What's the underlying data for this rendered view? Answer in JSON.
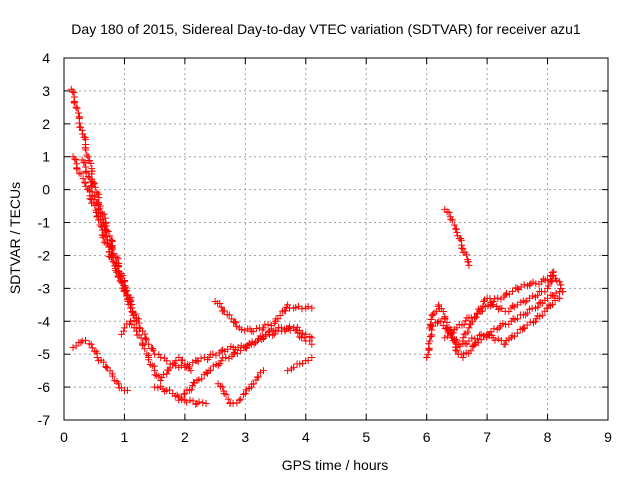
{
  "chart_data": {
    "type": "scatter",
    "title": "Day 180 of 2015, Sidereal Day-to-day VTEC variation (SDTVAR) for receiver azu1",
    "xlabel": "GPS time / hours",
    "ylabel": "SDTVAR / TECUs",
    "xlim": [
      0,
      9
    ],
    "ylim": [
      -7,
      4
    ],
    "x_ticks": [
      "0",
      "1",
      "2",
      "3",
      "4",
      "5",
      "6",
      "7",
      "8",
      "9"
    ],
    "y_ticks": [
      "4",
      "3",
      "2",
      "1",
      "0",
      "-1",
      "-2",
      "-3",
      "-4",
      "-5",
      "-6",
      "-7"
    ],
    "grid": true,
    "marker": "+",
    "color": "#ff0000",
    "series": [
      {
        "name": "trace-1",
        "points": [
          [
            0.12,
            3.05
          ],
          [
            0.2,
            2.5
          ],
          [
            0.3,
            1.8
          ],
          [
            0.4,
            1.0
          ],
          [
            0.5,
            0.2
          ],
          [
            0.6,
            -0.5
          ],
          [
            0.7,
            -1.1
          ],
          [
            0.8,
            -1.7
          ],
          [
            0.9,
            -2.3
          ],
          [
            1.0,
            -2.8
          ],
          [
            1.1,
            -3.4
          ],
          [
            1.2,
            -3.9
          ],
          [
            1.3,
            -4.3
          ],
          [
            1.4,
            -4.7
          ],
          [
            1.5,
            -5.0
          ],
          [
            1.6,
            -5.1
          ],
          [
            1.7,
            -5.2
          ],
          [
            1.8,
            -5.3
          ],
          [
            1.9,
            -5.4
          ],
          [
            2.0,
            -5.4
          ],
          [
            2.2,
            -5.2
          ],
          [
            2.4,
            -5.1
          ],
          [
            2.6,
            -4.9
          ],
          [
            2.8,
            -4.8
          ],
          [
            3.0,
            -4.8
          ],
          [
            3.2,
            -4.6
          ],
          [
            3.4,
            -4.4
          ],
          [
            3.6,
            -4.3
          ],
          [
            3.8,
            -4.2
          ],
          [
            4.0,
            -4.4
          ],
          [
            4.1,
            -4.5
          ]
        ]
      },
      {
        "name": "trace-2",
        "points": [
          [
            0.15,
            1.0
          ],
          [
            0.25,
            0.5
          ],
          [
            0.35,
            0.2
          ],
          [
            0.45,
            -0.3
          ],
          [
            0.55,
            -0.8
          ],
          [
            0.65,
            -1.4
          ],
          [
            0.75,
            -1.9
          ],
          [
            0.85,
            -2.4
          ],
          [
            0.95,
            -2.8
          ],
          [
            1.05,
            -3.2
          ],
          [
            1.1,
            -3.6
          ],
          [
            1.2,
            -4.0
          ]
        ]
      },
      {
        "name": "trace-3",
        "points": [
          [
            0.3,
            0.9
          ],
          [
            0.4,
            0.4
          ],
          [
            0.5,
            -0.2
          ],
          [
            0.6,
            -0.8
          ],
          [
            0.7,
            -1.4
          ],
          [
            0.8,
            -2.0
          ],
          [
            0.9,
            -2.5
          ],
          [
            1.0,
            -3.0
          ],
          [
            1.1,
            -3.5
          ]
        ]
      },
      {
        "name": "trace-4",
        "points": [
          [
            0.15,
            -4.8
          ],
          [
            0.3,
            -4.6
          ],
          [
            0.45,
            -4.7
          ],
          [
            0.55,
            -5.1
          ],
          [
            0.7,
            -5.4
          ],
          [
            0.8,
            -5.6
          ],
          [
            0.9,
            -5.9
          ],
          [
            1.0,
            -6.1
          ],
          [
            1.05,
            -6.1
          ]
        ]
      },
      {
        "name": "trace-5",
        "points": [
          [
            0.95,
            -4.4
          ],
          [
            1.0,
            -4.2
          ],
          [
            1.1,
            -4.0
          ],
          [
            1.2,
            -4.3
          ],
          [
            1.3,
            -4.7
          ],
          [
            1.4,
            -5.1
          ],
          [
            1.5,
            -5.5
          ],
          [
            1.6,
            -5.8
          ],
          [
            1.7,
            -5.6
          ],
          [
            1.8,
            -5.3
          ],
          [
            1.9,
            -5.1
          ],
          [
            2.0,
            -5.3
          ],
          [
            2.1,
            -5.5
          ]
        ]
      },
      {
        "name": "trace-6",
        "points": [
          [
            1.5,
            -6.0
          ],
          [
            1.7,
            -6.1
          ],
          [
            1.9,
            -6.3
          ],
          [
            2.0,
            -6.4
          ],
          [
            2.2,
            -6.5
          ],
          [
            2.35,
            -6.5
          ]
        ]
      },
      {
        "name": "trace-7",
        "points": [
          [
            1.9,
            -6.4
          ],
          [
            2.0,
            -6.2
          ],
          [
            2.2,
            -5.8
          ],
          [
            2.4,
            -5.5
          ],
          [
            2.6,
            -5.2
          ],
          [
            2.8,
            -5.0
          ],
          [
            3.0,
            -4.8
          ],
          [
            3.2,
            -4.6
          ],
          [
            3.4,
            -4.3
          ],
          [
            3.6,
            -4.2
          ],
          [
            3.8,
            -4.2
          ],
          [
            4.0,
            -4.6
          ],
          [
            4.1,
            -4.7
          ]
        ]
      },
      {
        "name": "trace-8",
        "points": [
          [
            2.5,
            -3.4
          ],
          [
            2.7,
            -3.8
          ],
          [
            2.9,
            -4.2
          ],
          [
            3.1,
            -4.3
          ],
          [
            3.3,
            -4.2
          ],
          [
            3.5,
            -4.0
          ],
          [
            3.7,
            -3.5
          ],
          [
            3.8,
            -3.6
          ],
          [
            4.0,
            -3.6
          ],
          [
            4.1,
            -3.6
          ]
        ]
      },
      {
        "name": "trace-9",
        "points": [
          [
            2.55,
            -5.9
          ],
          [
            2.65,
            -6.2
          ],
          [
            2.75,
            -6.5
          ],
          [
            2.9,
            -6.4
          ],
          [
            3.0,
            -6.2
          ],
          [
            3.1,
            -6.0
          ],
          [
            3.2,
            -5.7
          ],
          [
            3.3,
            -5.5
          ]
        ]
      },
      {
        "name": "trace-10",
        "points": [
          [
            3.7,
            -5.5
          ],
          [
            3.8,
            -5.4
          ],
          [
            3.9,
            -5.3
          ],
          [
            4.0,
            -5.2
          ],
          [
            4.1,
            -5.1
          ]
        ]
      },
      {
        "name": "trace-11",
        "points": [
          [
            6.0,
            -5.1
          ],
          [
            6.05,
            -4.6
          ],
          [
            6.1,
            -3.8
          ],
          [
            6.2,
            -3.5
          ],
          [
            6.3,
            -3.9
          ],
          [
            6.4,
            -4.3
          ],
          [
            6.5,
            -4.7
          ],
          [
            6.6,
            -4.6
          ],
          [
            6.7,
            -4.2
          ],
          [
            6.8,
            -3.9
          ],
          [
            6.9,
            -3.6
          ],
          [
            7.0,
            -3.3
          ],
          [
            7.1,
            -3.5
          ],
          [
            7.3,
            -3.7
          ],
          [
            7.5,
            -3.5
          ],
          [
            7.7,
            -3.3
          ],
          [
            7.9,
            -3.1
          ],
          [
            8.0,
            -3.0
          ],
          [
            8.1,
            -2.5
          ]
        ]
      },
      {
        "name": "trace-12",
        "points": [
          [
            6.05,
            -4.2
          ],
          [
            6.2,
            -4.0
          ],
          [
            6.4,
            -4.4
          ],
          [
            6.5,
            -4.9
          ],
          [
            6.6,
            -5.1
          ],
          [
            6.8,
            -4.7
          ],
          [
            7.0,
            -4.4
          ],
          [
            7.2,
            -4.2
          ],
          [
            7.4,
            -4.0
          ],
          [
            7.6,
            -3.8
          ],
          [
            7.8,
            -3.6
          ],
          [
            8.0,
            -3.3
          ],
          [
            8.2,
            -3.1
          ],
          [
            8.25,
            -3.1
          ]
        ]
      },
      {
        "name": "trace-13",
        "points": [
          [
            6.3,
            -4.5
          ],
          [
            6.5,
            -4.2
          ],
          [
            6.7,
            -3.9
          ],
          [
            6.9,
            -3.7
          ],
          [
            7.1,
            -3.4
          ],
          [
            7.3,
            -3.2
          ],
          [
            7.5,
            -3.0
          ],
          [
            7.7,
            -2.9
          ],
          [
            7.9,
            -2.8
          ],
          [
            8.1,
            -2.6
          ],
          [
            8.2,
            -2.8
          ],
          [
            8.25,
            -3.1
          ]
        ]
      },
      {
        "name": "trace-14",
        "points": [
          [
            6.5,
            -4.8
          ],
          [
            6.7,
            -4.6
          ],
          [
            6.9,
            -4.4
          ],
          [
            7.1,
            -4.5
          ],
          [
            7.3,
            -4.7
          ],
          [
            7.4,
            -4.5
          ],
          [
            7.6,
            -4.2
          ],
          [
            7.8,
            -4.0
          ],
          [
            8.0,
            -3.6
          ],
          [
            8.2,
            -3.3
          ]
        ]
      },
      {
        "name": "trace-15",
        "points": [
          [
            6.3,
            -0.6
          ],
          [
            6.4,
            -0.9
          ],
          [
            6.5,
            -1.3
          ],
          [
            6.6,
            -1.8
          ],
          [
            6.7,
            -2.3
          ]
        ]
      }
    ]
  }
}
